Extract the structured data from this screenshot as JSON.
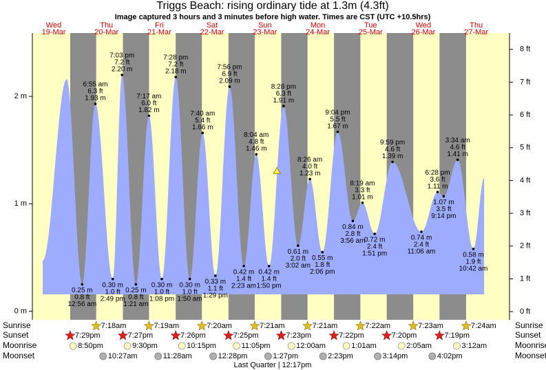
{
  "chart_data": {
    "type": "tide",
    "title": "Triggs Beach: rising  ordinary tide at 1.3m (4.3ft)",
    "subtitle": "Image captured 3 hours and 3 minutes before high water. Times are CST (UTC +10.5hrs)",
    "weekdays": [
      "Wed",
      "Thu",
      "Fri",
      "Sat",
      "Sun",
      "Mon",
      "Tue",
      "Wed",
      "Thu"
    ],
    "categories": [
      "19-Mar",
      "20-Mar",
      "21-Mar",
      "22-Mar",
      "23-Mar",
      "24-Mar",
      "25-Mar",
      "26-Mar",
      "27-Mar"
    ],
    "x": [
      "19-Mar 7:00 am",
      "19-Mar 5:54 pm",
      "20-Mar 12:56 am",
      "20-Mar 6:55 am",
      "20-Mar 2:49 pm",
      "20-Mar 7:03 pm",
      "21-Mar 1:21 am",
      "21-Mar 7:17 am",
      "21-Mar 1:08 pm",
      "21-Mar 7:28 pm",
      "22-Mar 1:50 am",
      "22-Mar 7:40 am",
      "22-Mar 1:29 pm",
      "22-Mar 7:56 pm",
      "23-Mar 2:23 am",
      "23-Mar 8:04 am",
      "23-Mar 1:50 pm",
      "23-Mar 8:28 pm",
      "24-Mar 3:02 am",
      "24-Mar 8:26 am",
      "24-Mar 2:06 pm",
      "24-Mar 9:04 pm",
      "25-Mar 3:56 am",
      "25-Mar 8:19 am",
      "25-Mar 1:51 pm",
      "25-Mar 9:59 pm",
      "26-Mar 11:06 am",
      "26-Mar 6:28 pm",
      "26-Mar 9:14 pm",
      "27-Mar 3:34 am",
      "27-Mar 10:42 am",
      "27-Mar 3:36 pm"
    ],
    "values": [
      0.47,
      2.16,
      0.25,
      1.93,
      0.3,
      2.2,
      0.25,
      1.82,
      0.3,
      2.18,
      0.3,
      1.66,
      0.33,
      2.09,
      0.42,
      1.46,
      0.42,
      1.91,
      0.61,
      1.23,
      0.55,
      1.67,
      0.84,
      1.01,
      0.72,
      1.39,
      0.74,
      1.11,
      1.07,
      1.41,
      0.58,
      1.24
    ],
    "value_labels": [
      null,
      null,
      "0.25 m",
      "1.93 m",
      "0.30 m",
      "2.20 m",
      "0.25 m",
      "1.82 m",
      "0.30 m",
      "2.18 m",
      "0.30 m",
      "1.66 m",
      "0.33 m",
      "2.09 m",
      "0.42 m",
      "1.46 m",
      "0.42 m",
      "1.91 m",
      "0.61 m",
      "1.23 m",
      "0.55 m",
      "1.67 m",
      "0.84 m",
      "1.01 m",
      "0.72 m",
      "1.39 m",
      "0.74 m",
      "1.11 m",
      "1.07 m",
      "1.41 m",
      "0.58 m",
      null
    ],
    "ft_labels": [
      null,
      null,
      "0.8 ft",
      "6.3 ft",
      "1.0 ft",
      "7.2 ft",
      "0.8 ft",
      "6.0 ft",
      "1.0 ft",
      "7.2 ft",
      "1.0 ft",
      "5.4 ft",
      "1.1 ft",
      "6.9 ft",
      "1.4 ft",
      "4.8 ft",
      "1.4 ft",
      "6.3 ft",
      "2.0 ft",
      "4.0 ft",
      "1.8 ft",
      "5.5 ft",
      "2.8 ft",
      "3.3 ft",
      "2.4 ft",
      "4.6 ft",
      "2.4 ft",
      "3.6 ft",
      "3.5 ft",
      "4.6 ft",
      "1.9 ft",
      null
    ],
    "time_labels": [
      null,
      null,
      "12:56 am",
      "6:55 am",
      "2:49 pm",
      "7:03 pm",
      "1:21 am",
      "7:17 am",
      "1:08 pm",
      "7:28 pm",
      "1:50 am",
      "7:40 am",
      "1:29 pm",
      "7:56 pm",
      "2:23 am",
      "8:04 am",
      "1:50 pm",
      "8:28 pm",
      "3:02 am",
      "8:26 am",
      "2:06 pm",
      "9:04 pm",
      "3:56 am",
      "8:19 am",
      "1:51 pm",
      "9:59 pm",
      "11:06 am",
      "6:28 pm",
      "9:14 pm",
      "3:34 am",
      "10:42 am",
      null
    ],
    "color": "#9eacff",
    "ylim": [
      -0.08,
      2.59
    ],
    "yticks": [
      {
        "value": 0,
        "label": "0 m"
      },
      {
        "value": 1,
        "label": "1 m"
      },
      {
        "value": 2,
        "label": "2 m"
      }
    ],
    "y2lim": [
      -0.25,
      8.5
    ],
    "y2ticks": [
      {
        "value": 0,
        "label": "0 ft"
      },
      {
        "value": 1,
        "label": "1 ft"
      },
      {
        "value": 2,
        "label": "2 ft"
      },
      {
        "value": 3,
        "label": "3 ft"
      },
      {
        "value": 4,
        "label": "4 ft"
      },
      {
        "value": 5,
        "label": "5 ft"
      },
      {
        "value": 6,
        "label": "6 ft"
      },
      {
        "value": 7,
        "label": "7 ft"
      },
      {
        "value": 8,
        "label": "8 ft"
      }
    ],
    "now": {
      "x": "23-Mar 5:25 pm",
      "value": 1.3
    },
    "sunrise": {
      "label": "Sunrise",
      "days": [
        "20-Mar",
        "21-Mar",
        "22-Mar",
        "23-Mar",
        "24-Mar",
        "25-Mar",
        "26-Mar",
        "27-Mar"
      ],
      "times": [
        "7:18am",
        "7:19am",
        "7:20am",
        "7:21am",
        "7:21am",
        "7:22am",
        "7:23am",
        "7:24am"
      ]
    },
    "sunset": {
      "label": "Sunset",
      "days": [
        "19-Mar",
        "20-Mar",
        "21-Mar",
        "22-Mar",
        "23-Mar",
        "24-Mar",
        "25-Mar",
        "26-Mar"
      ],
      "times": [
        "7:29pm",
        "7:27pm",
        "7:26pm",
        "7:25pm",
        "7:23pm",
        "7:22pm",
        "7:20pm",
        "7:19pm"
      ]
    },
    "moonrise": {
      "label": "Moonrise",
      "days": [
        "19-Mar",
        "20-Mar",
        "21-Mar",
        "22-Mar",
        "24-Mar",
        "25-Mar",
        "26-Mar",
        "27-Mar"
      ],
      "times": [
        "8:50pm",
        "9:30pm",
        "10:15pm",
        "11:05pm",
        "12:00am",
        "1:01am",
        "2:05am",
        "3:12am"
      ]
    },
    "moonset": {
      "label": "Moonset",
      "days": [
        "20-Mar",
        "21-Mar",
        "22-Mar",
        "23-Mar",
        "24-Mar",
        "25-Mar",
        "26-Mar"
      ],
      "times": [
        "10:27am",
        "11:28am",
        "12:28pm",
        "1:27pm",
        "2:23pm",
        "3:14pm",
        "4:02pm"
      ]
    },
    "moon_phase": "Last Quarter | 12:17pm"
  }
}
